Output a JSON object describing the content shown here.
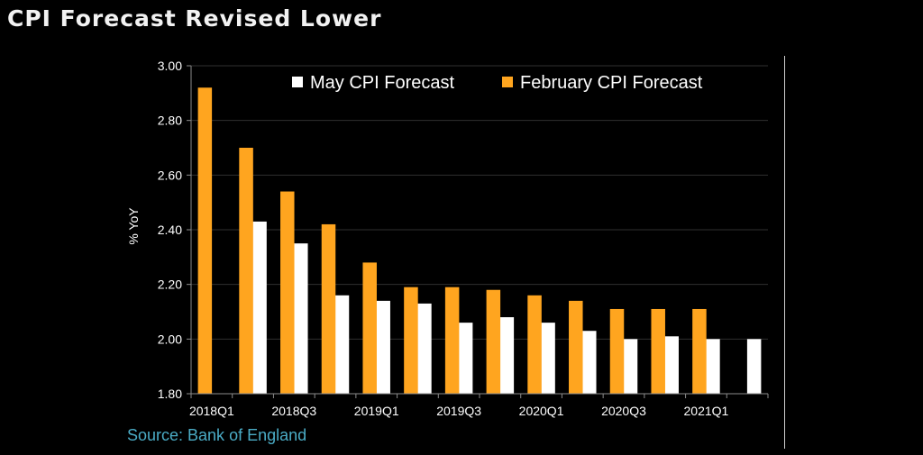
{
  "title": "CPI Forecast Revised Lower",
  "source": "Source: Bank of England",
  "colors": {
    "background": "#000000",
    "may": "#ffffff",
    "february": "#ffa51f",
    "grid": "#2f2f2f",
    "text": "#ffffff",
    "source": "#4bacc6"
  },
  "chart_data": {
    "type": "bar",
    "title": "CPI Forecast Revised Lower",
    "xlabel": "",
    "ylabel": "% YoY",
    "ylim": [
      1.8,
      3.0
    ],
    "yticks": [
      1.8,
      2.0,
      2.2,
      2.4,
      2.6,
      2.8,
      3.0
    ],
    "ytick_labels": [
      "1.80",
      "2.00",
      "2.20",
      "2.40",
      "2.60",
      "2.80",
      "3.00"
    ],
    "grid": true,
    "legend_position": "top",
    "categories": [
      "2018Q1",
      "2018Q2",
      "2018Q3",
      "2018Q4",
      "2019Q1",
      "2019Q2",
      "2019Q3",
      "2019Q4",
      "2020Q1",
      "2020Q2",
      "2020Q3",
      "2020Q4",
      "2021Q1",
      "2021Q2"
    ],
    "xtick_labels": [
      "2018Q1",
      "",
      "2018Q3",
      "",
      "2019Q1",
      "",
      "2019Q3",
      "",
      "2020Q1",
      "",
      "2020Q3",
      "",
      "2021Q1",
      ""
    ],
    "series": [
      {
        "name": "May CPI Forecast",
        "color": "#ffffff",
        "values": [
          null,
          2.43,
          2.35,
          2.16,
          2.14,
          2.13,
          2.06,
          2.08,
          2.06,
          2.03,
          2.0,
          2.01,
          2.0,
          2.0
        ]
      },
      {
        "name": "February CPI Forecast",
        "color": "#ffa51f",
        "values": [
          2.92,
          2.7,
          2.54,
          2.42,
          2.28,
          2.19,
          2.19,
          2.18,
          2.16,
          2.14,
          2.11,
          2.11,
          2.11,
          null
        ]
      }
    ]
  }
}
